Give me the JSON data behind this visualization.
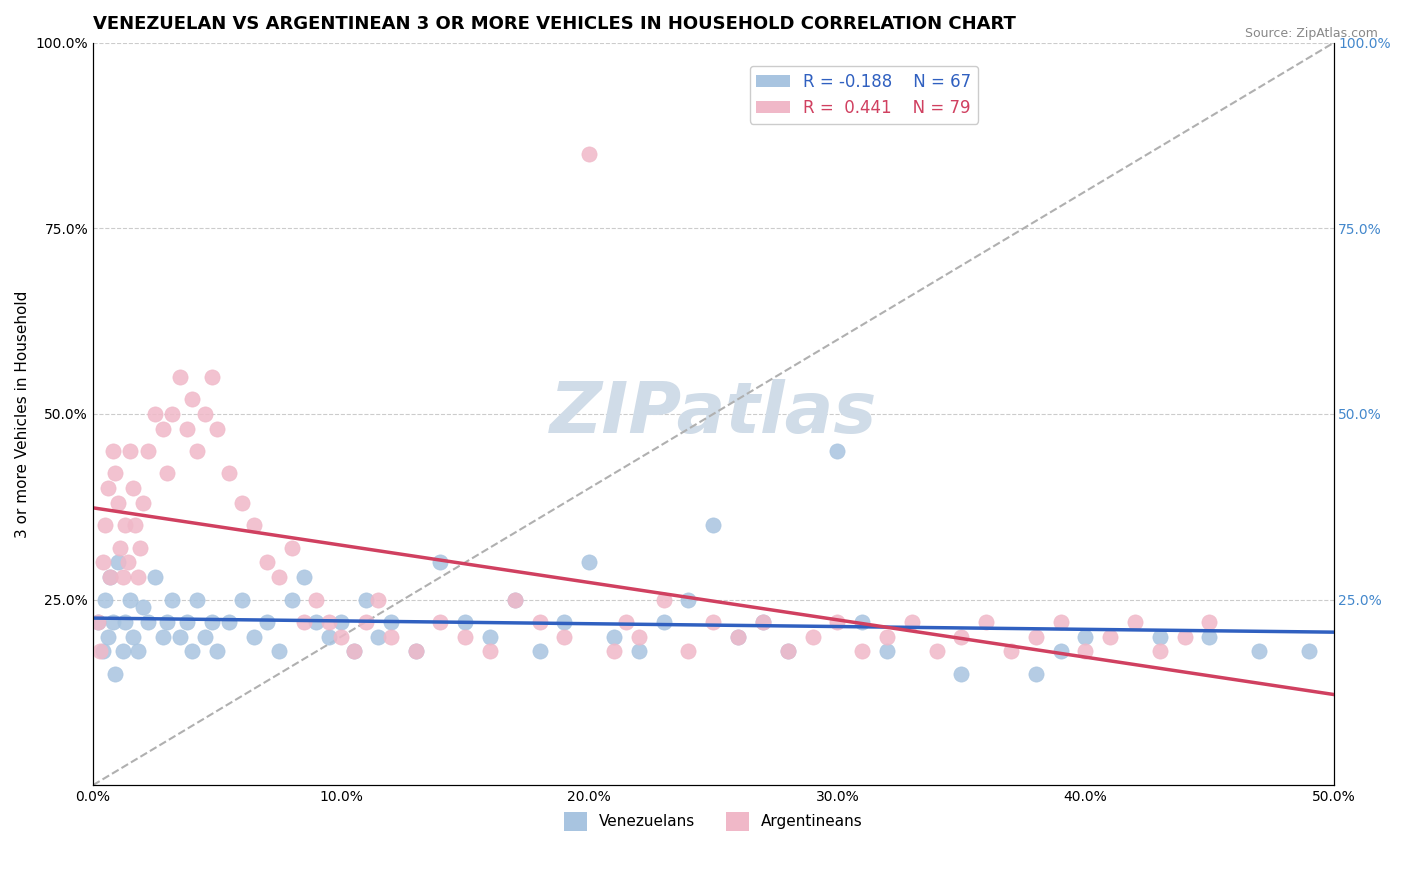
{
  "title": "VENEZUELAN VS ARGENTINEAN 3 OR MORE VEHICLES IN HOUSEHOLD CORRELATION CHART",
  "source_text": "Source: ZipAtlas.com",
  "xlabel": "",
  "ylabel": "3 or more Vehicles in Household",
  "xlim": [
    0.0,
    0.5
  ],
  "ylim": [
    0.0,
    1.0
  ],
  "xtick_labels": [
    "0.0%",
    "10.0%",
    "20.0%",
    "30.0%",
    "40.0%",
    "50.0%"
  ],
  "xtick_vals": [
    0.0,
    0.1,
    0.2,
    0.3,
    0.4,
    0.5
  ],
  "ytick_labels": [
    "25.0%",
    "50.0%",
    "75.0%",
    "100.0%"
  ],
  "ytick_vals": [
    0.25,
    0.5,
    0.75,
    1.0
  ],
  "right_ytick_labels": [
    "25.0%",
    "50.0%",
    "75.0%",
    "100.0%"
  ],
  "right_ytick_vals": [
    0.25,
    0.5,
    0.75,
    1.0
  ],
  "venezuelan_color": "#a8c4e0",
  "argentinean_color": "#f0b8c8",
  "venezuelan_line_color": "#3060c0",
  "argentinean_line_color": "#d04060",
  "diagonal_color": "#b0b0b0",
  "watermark_color": "#d0dce8",
  "legend_r_venezuelan": "-0.188",
  "legend_n_venezuelan": "67",
  "legend_r_argentinean": "0.441",
  "legend_n_argentinean": "79",
  "venezuelan_scatter": [
    [
      0.002,
      0.22
    ],
    [
      0.004,
      0.18
    ],
    [
      0.005,
      0.25
    ],
    [
      0.006,
      0.2
    ],
    [
      0.007,
      0.28
    ],
    [
      0.008,
      0.22
    ],
    [
      0.009,
      0.15
    ],
    [
      0.01,
      0.3
    ],
    [
      0.012,
      0.18
    ],
    [
      0.013,
      0.22
    ],
    [
      0.015,
      0.25
    ],
    [
      0.016,
      0.2
    ],
    [
      0.018,
      0.18
    ],
    [
      0.02,
      0.24
    ],
    [
      0.022,
      0.22
    ],
    [
      0.025,
      0.28
    ],
    [
      0.028,
      0.2
    ],
    [
      0.03,
      0.22
    ],
    [
      0.032,
      0.25
    ],
    [
      0.035,
      0.2
    ],
    [
      0.038,
      0.22
    ],
    [
      0.04,
      0.18
    ],
    [
      0.042,
      0.25
    ],
    [
      0.045,
      0.2
    ],
    [
      0.048,
      0.22
    ],
    [
      0.05,
      0.18
    ],
    [
      0.055,
      0.22
    ],
    [
      0.06,
      0.25
    ],
    [
      0.065,
      0.2
    ],
    [
      0.07,
      0.22
    ],
    [
      0.075,
      0.18
    ],
    [
      0.08,
      0.25
    ],
    [
      0.085,
      0.28
    ],
    [
      0.09,
      0.22
    ],
    [
      0.095,
      0.2
    ],
    [
      0.1,
      0.22
    ],
    [
      0.105,
      0.18
    ],
    [
      0.11,
      0.25
    ],
    [
      0.115,
      0.2
    ],
    [
      0.12,
      0.22
    ],
    [
      0.13,
      0.18
    ],
    [
      0.14,
      0.3
    ],
    [
      0.15,
      0.22
    ],
    [
      0.16,
      0.2
    ],
    [
      0.17,
      0.25
    ],
    [
      0.18,
      0.18
    ],
    [
      0.19,
      0.22
    ],
    [
      0.2,
      0.3
    ],
    [
      0.21,
      0.2
    ],
    [
      0.22,
      0.18
    ],
    [
      0.23,
      0.22
    ],
    [
      0.24,
      0.25
    ],
    [
      0.25,
      0.35
    ],
    [
      0.26,
      0.2
    ],
    [
      0.27,
      0.22
    ],
    [
      0.28,
      0.18
    ],
    [
      0.3,
      0.45
    ],
    [
      0.31,
      0.22
    ],
    [
      0.32,
      0.18
    ],
    [
      0.35,
      0.15
    ],
    [
      0.38,
      0.15
    ],
    [
      0.39,
      0.18
    ],
    [
      0.4,
      0.2
    ],
    [
      0.43,
      0.2
    ],
    [
      0.45,
      0.2
    ],
    [
      0.47,
      0.18
    ],
    [
      0.49,
      0.18
    ]
  ],
  "argentinean_scatter": [
    [
      0.002,
      0.22
    ],
    [
      0.003,
      0.18
    ],
    [
      0.004,
      0.3
    ],
    [
      0.005,
      0.35
    ],
    [
      0.006,
      0.4
    ],
    [
      0.007,
      0.28
    ],
    [
      0.008,
      0.45
    ],
    [
      0.009,
      0.42
    ],
    [
      0.01,
      0.38
    ],
    [
      0.011,
      0.32
    ],
    [
      0.012,
      0.28
    ],
    [
      0.013,
      0.35
    ],
    [
      0.014,
      0.3
    ],
    [
      0.015,
      0.45
    ],
    [
      0.016,
      0.4
    ],
    [
      0.017,
      0.35
    ],
    [
      0.018,
      0.28
    ],
    [
      0.019,
      0.32
    ],
    [
      0.02,
      0.38
    ],
    [
      0.022,
      0.45
    ],
    [
      0.025,
      0.5
    ],
    [
      0.028,
      0.48
    ],
    [
      0.03,
      0.42
    ],
    [
      0.032,
      0.5
    ],
    [
      0.035,
      0.55
    ],
    [
      0.038,
      0.48
    ],
    [
      0.04,
      0.52
    ],
    [
      0.042,
      0.45
    ],
    [
      0.045,
      0.5
    ],
    [
      0.048,
      0.55
    ],
    [
      0.05,
      0.48
    ],
    [
      0.055,
      0.42
    ],
    [
      0.06,
      0.38
    ],
    [
      0.065,
      0.35
    ],
    [
      0.07,
      0.3
    ],
    [
      0.075,
      0.28
    ],
    [
      0.08,
      0.32
    ],
    [
      0.085,
      0.22
    ],
    [
      0.09,
      0.25
    ],
    [
      0.095,
      0.22
    ],
    [
      0.1,
      0.2
    ],
    [
      0.105,
      0.18
    ],
    [
      0.11,
      0.22
    ],
    [
      0.115,
      0.25
    ],
    [
      0.12,
      0.2
    ],
    [
      0.13,
      0.18
    ],
    [
      0.14,
      0.22
    ],
    [
      0.15,
      0.2
    ],
    [
      0.16,
      0.18
    ],
    [
      0.17,
      0.25
    ],
    [
      0.18,
      0.22
    ],
    [
      0.19,
      0.2
    ],
    [
      0.2,
      0.85
    ],
    [
      0.21,
      0.18
    ],
    [
      0.215,
      0.22
    ],
    [
      0.22,
      0.2
    ],
    [
      0.23,
      0.25
    ],
    [
      0.24,
      0.18
    ],
    [
      0.25,
      0.22
    ],
    [
      0.26,
      0.2
    ],
    [
      0.27,
      0.22
    ],
    [
      0.28,
      0.18
    ],
    [
      0.29,
      0.2
    ],
    [
      0.3,
      0.22
    ],
    [
      0.31,
      0.18
    ],
    [
      0.32,
      0.2
    ],
    [
      0.33,
      0.22
    ],
    [
      0.34,
      0.18
    ],
    [
      0.35,
      0.2
    ],
    [
      0.36,
      0.22
    ],
    [
      0.37,
      0.18
    ],
    [
      0.38,
      0.2
    ],
    [
      0.39,
      0.22
    ],
    [
      0.4,
      0.18
    ],
    [
      0.41,
      0.2
    ],
    [
      0.42,
      0.22
    ],
    [
      0.43,
      0.18
    ],
    [
      0.44,
      0.2
    ],
    [
      0.45,
      0.22
    ]
  ],
  "background_color": "#ffffff",
  "title_fontsize": 13,
  "axis_label_fontsize": 11,
  "tick_fontsize": 10,
  "legend_fontsize": 12
}
